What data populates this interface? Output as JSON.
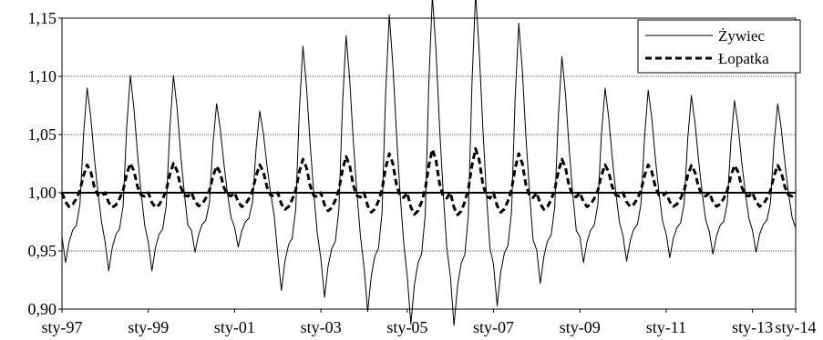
{
  "chart_data": {
    "type": "line",
    "title": "",
    "xlabel": "",
    "ylabel": "",
    "x_start": "1997-01",
    "x_end": "2014-01",
    "x_ticks": [
      "sty-97",
      "sty-99",
      "sty-01",
      "sty-03",
      "sty-05",
      "sty-07",
      "sty-09",
      "sty-11",
      "sty-13",
      "sty-14"
    ],
    "y_ticks": [
      "0,90",
      "0,95",
      "1,00",
      "1,05",
      "1,10",
      "1,15"
    ],
    "ylim": [
      0.9,
      1.15
    ],
    "grid": "horizontal",
    "reference_line": 1.0,
    "legend_position": "top-right",
    "series": [
      {
        "name": "Żywiec",
        "style": "solid-thin",
        "color": "#000000",
        "annual_pattern": [
          0.962,
          0.94,
          0.958,
          0.968,
          0.972,
          0.99,
          1.05,
          1.09,
          1.065,
          1.03,
          1.0,
          0.975
        ],
        "year_amplitude": [
          1.0,
          1.12,
          1.12,
          0.85,
          0.78,
          1.4,
          1.5,
          1.7,
          1.88,
          1.9,
          1.62,
          1.3,
          1.0,
          0.98,
          0.93,
          0.88,
          0.85,
          0.8
        ]
      },
      {
        "name": "Łopatka",
        "style": "dashed-thick",
        "color": "#000000",
        "annual_pattern": [
          1.0,
          0.992,
          0.988,
          0.99,
          0.995,
          1.002,
          1.015,
          1.024,
          1.018,
          1.005,
          0.998,
          0.997
        ],
        "year_amplitude": [
          1.0,
          1.05,
          1.05,
          0.95,
          1.0,
          1.2,
          1.3,
          1.4,
          1.55,
          1.58,
          1.4,
          1.2,
          1.0,
          1.0,
          0.98,
          0.98,
          0.98,
          0.98
        ]
      }
    ]
  }
}
